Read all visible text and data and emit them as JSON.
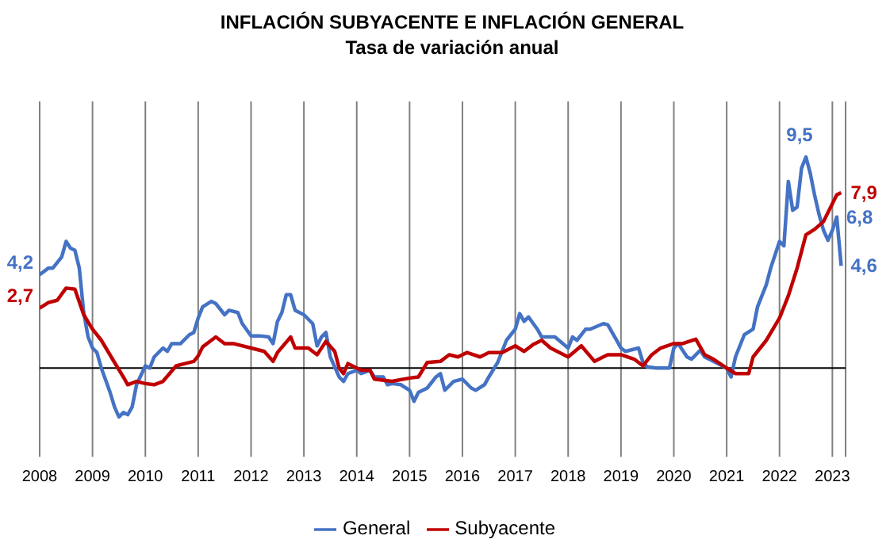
{
  "chart_data": {
    "type": "line",
    "title": "INFLACIÓN SUBYACENTE E INFLACIÓN GENERAL",
    "subtitle": "Tasa de variación anual",
    "xlim": [
      "2008-01",
      "2023-04"
    ],
    "xticks": [
      "2008",
      "2009",
      "2010",
      "2011",
      "2012",
      "2013",
      "2014",
      "2015",
      "2016",
      "2017",
      "2018",
      "2019",
      "2020",
      "2021",
      "2022",
      "2023"
    ],
    "ylim": [
      -4,
      12
    ],
    "tick_labels": "x",
    "grid": "x",
    "legend": "bottom",
    "marker": "none",
    "line_style": "solid",
    "ref_lines": [
      {
        "axis": "y",
        "value": 0,
        "color": "#000000"
      }
    ],
    "series": [
      {
        "name": "General",
        "color": "#4472c4",
        "x": [
          "2008-01",
          "2008-03",
          "2008-04",
          "2008-06",
          "2008-07",
          "2008-08",
          "2008-09",
          "2008-10",
          "2008-11",
          "2008-12",
          "2009-01",
          "2009-02",
          "2009-03",
          "2009-05",
          "2009-06",
          "2009-07",
          "2009-08",
          "2009-09",
          "2009-10",
          "2009-11",
          "2010-01",
          "2010-02",
          "2010-03",
          "2010-05",
          "2010-06",
          "2010-07",
          "2010-09",
          "2010-11",
          "2010-12",
          "2011-01",
          "2011-02",
          "2011-04",
          "2011-05",
          "2011-07",
          "2011-08",
          "2011-10",
          "2011-11",
          "2012-01",
          "2012-03",
          "2012-05",
          "2012-06",
          "2012-07",
          "2012-08",
          "2012-09",
          "2012-10",
          "2012-11",
          "2013-01",
          "2013-03",
          "2013-04",
          "2013-05",
          "2013-06",
          "2013-07",
          "2013-09",
          "2013-10",
          "2013-11",
          "2014-01",
          "2014-02",
          "2014-04",
          "2014-05",
          "2014-07",
          "2014-08",
          "2014-09",
          "2014-11",
          "2015-01",
          "2015-02",
          "2015-03",
          "2015-05",
          "2015-07",
          "2015-08",
          "2015-09",
          "2015-11",
          "2016-01",
          "2016-03",
          "2016-04",
          "2016-06",
          "2016-07",
          "2016-09",
          "2016-11",
          "2017-01",
          "2017-02",
          "2017-03",
          "2017-04",
          "2017-06",
          "2017-07",
          "2017-10",
          "2018-01",
          "2018-02",
          "2018-03",
          "2018-05",
          "2018-06",
          "2018-09",
          "2018-10",
          "2018-12",
          "2019-01",
          "2019-02",
          "2019-05",
          "2019-06",
          "2019-07",
          "2019-09",
          "2019-12",
          "2020-01",
          "2020-02",
          "2020-04",
          "2020-05",
          "2020-07",
          "2020-08",
          "2020-10",
          "2020-12",
          "2021-01",
          "2021-02",
          "2021-03",
          "2021-05",
          "2021-07",
          "2021-08",
          "2021-10",
          "2021-11",
          "2022-01",
          "2022-02",
          "2022-03",
          "2022-04",
          "2022-05",
          "2022-06",
          "2022-07",
          "2022-08",
          "2022-09",
          "2022-10",
          "2022-11",
          "2022-12",
          "2023-01",
          "2023-02",
          "2023-03"
        ],
        "values": [
          4.2,
          4.5,
          4.5,
          5.0,
          5.7,
          5.4,
          5.3,
          4.5,
          2.5,
          1.4,
          0.9,
          0.7,
          0,
          -1.1,
          -1.75,
          -2.2,
          -2.0,
          -2.1,
          -1.75,
          -0.75,
          0.1,
          0,
          0.5,
          0.9,
          0.75,
          1.1,
          1.1,
          1.5,
          1.6,
          2.25,
          2.75,
          3.0,
          2.9,
          2.4,
          2.6,
          2.5,
          2.0,
          1.45,
          1.45,
          1.4,
          1.1,
          2.1,
          2.5,
          3.3,
          3.3,
          2.6,
          2.4,
          2.0,
          1.0,
          1.4,
          1.6,
          0.5,
          -0.4,
          -0.6,
          -0.25,
          -0.1,
          -0.25,
          -0.1,
          -0.4,
          -0.4,
          -0.75,
          -0.7,
          -0.75,
          -1.0,
          -1.5,
          -1.1,
          -0.9,
          -0.4,
          -0.25,
          -1.0,
          -0.6,
          -0.5,
          -0.9,
          -1.0,
          -0.75,
          -0.4,
          0.25,
          1.25,
          1.75,
          2.45,
          2.1,
          2.3,
          1.75,
          1.4,
          1.4,
          0.9,
          1.4,
          1.25,
          1.75,
          1.75,
          2.0,
          1.95,
          1.25,
          0.9,
          0.75,
          0.9,
          0.25,
          0.05,
          0,
          0,
          0.9,
          1.1,
          0.5,
          0.4,
          0.8,
          0.5,
          0.3,
          0.1,
          0,
          -0.4,
          0.5,
          1.5,
          1.75,
          2.75,
          3.75,
          4.5,
          5.7,
          5.5,
          8.4,
          7.1,
          7.25,
          9.0,
          9.5,
          8.75,
          7.75,
          6.9,
          6.2,
          5.75,
          6.2,
          6.8,
          4.6
        ],
        "value_labels": [
          "4,2",
          null,
          null,
          null,
          null,
          null,
          null,
          null,
          null,
          null,
          null,
          null,
          null,
          null,
          null,
          null,
          null,
          null,
          null,
          null,
          null,
          null,
          null,
          null,
          null,
          null,
          null,
          null,
          null,
          null,
          null,
          null,
          null,
          null,
          null,
          null,
          null,
          null,
          null,
          null,
          null,
          null,
          null,
          null,
          null,
          null,
          null,
          null,
          null,
          null,
          null,
          null,
          null,
          null,
          null,
          null,
          null,
          null,
          null,
          null,
          null,
          null,
          null,
          null,
          null,
          null,
          null,
          null,
          null,
          null,
          null,
          null,
          null,
          null,
          null,
          null,
          null,
          null,
          null,
          null,
          null,
          null,
          null,
          null,
          null,
          null,
          null,
          null,
          null,
          null,
          null,
          null,
          null,
          null,
          null,
          null,
          null,
          null,
          null,
          null,
          null,
          null,
          null,
          null,
          null,
          null,
          null,
          null,
          null,
          null,
          null,
          null,
          null,
          null,
          null,
          null,
          null,
          null,
          null,
          null,
          null,
          null,
          "9,5",
          null,
          null,
          null,
          null,
          null,
          null,
          "6,8",
          "4,6"
        ]
      },
      {
        "name": "Subyacente",
        "color": "#c00000",
        "x": [
          "2008-01",
          "2008-03",
          "2008-05",
          "2008-07",
          "2008-09",
          "2008-11",
          "2009-01",
          "2009-03",
          "2009-06",
          "2009-08",
          "2009-09",
          "2009-11",
          "2010-01",
          "2010-03",
          "2010-05",
          "2010-08",
          "2010-10",
          "2010-12",
          "2011-01",
          "2011-02",
          "2011-05",
          "2011-07",
          "2011-09",
          "2012-01",
          "2012-04",
          "2012-06",
          "2012-07",
          "2012-10",
          "2012-11",
          "2013-02",
          "2013-04",
          "2013-06",
          "2013-08",
          "2013-09",
          "2013-10",
          "2013-11",
          "2014-02",
          "2014-04",
          "2014-05",
          "2014-09",
          "2015-01",
          "2015-03",
          "2015-05",
          "2015-08",
          "2015-10",
          "2015-12",
          "2016-02",
          "2016-05",
          "2016-07",
          "2016-10",
          "2017-01",
          "2017-03",
          "2017-05",
          "2017-07",
          "2017-09",
          "2018-01",
          "2018-04",
          "2018-07",
          "2018-10",
          "2019-01",
          "2019-04",
          "2019-06",
          "2019-08",
          "2019-10",
          "2020-01",
          "2020-03",
          "2020-06",
          "2020-08",
          "2020-10",
          "2021-01",
          "2021-03",
          "2021-06",
          "2021-07",
          "2021-10",
          "2022-01",
          "2022-03",
          "2022-05",
          "2022-07",
          "2022-09",
          "2022-11",
          "2023-01",
          "2023-02",
          "2023-03"
        ],
        "values": [
          2.7,
          2.95,
          3.05,
          3.6,
          3.55,
          2.4,
          1.75,
          1.25,
          0.25,
          -0.4,
          -0.75,
          -0.6,
          -0.7,
          -0.75,
          -0.6,
          0.1,
          0.2,
          0.3,
          0.55,
          0.95,
          1.4,
          1.1,
          1.1,
          0.9,
          0.75,
          0.3,
          0.7,
          1.4,
          0.9,
          0.9,
          0.6,
          1.2,
          0.75,
          0,
          -0.25,
          0.2,
          -0.1,
          -0.1,
          -0.5,
          -0.6,
          -0.45,
          -0.4,
          0.25,
          0.3,
          0.6,
          0.5,
          0.7,
          0.5,
          0.7,
          0.7,
          1.0,
          0.75,
          1.05,
          1.25,
          0.9,
          0.5,
          1.0,
          0.3,
          0.6,
          0.6,
          0.4,
          0.1,
          0.6,
          0.9,
          1.1,
          1.1,
          1.3,
          0.6,
          0.4,
          0,
          -0.25,
          -0.25,
          0.5,
          1.25,
          2.25,
          3.25,
          4.5,
          6.0,
          6.25,
          6.6,
          7.4,
          7.8,
          7.9
        ],
        "value_labels": [
          "2,7",
          null,
          null,
          null,
          null,
          null,
          null,
          null,
          null,
          null,
          null,
          null,
          null,
          null,
          null,
          null,
          null,
          null,
          null,
          null,
          null,
          null,
          null,
          null,
          null,
          null,
          null,
          null,
          null,
          null,
          null,
          null,
          null,
          null,
          null,
          null,
          null,
          null,
          null,
          null,
          null,
          null,
          null,
          null,
          null,
          null,
          null,
          null,
          null,
          null,
          null,
          null,
          null,
          null,
          null,
          null,
          null,
          null,
          null,
          null,
          null,
          null,
          null,
          null,
          null,
          null,
          null,
          null,
          null,
          null,
          null,
          null,
          null,
          null,
          null,
          null,
          null,
          null,
          null,
          null,
          null,
          null,
          "7,9"
        ]
      }
    ]
  }
}
